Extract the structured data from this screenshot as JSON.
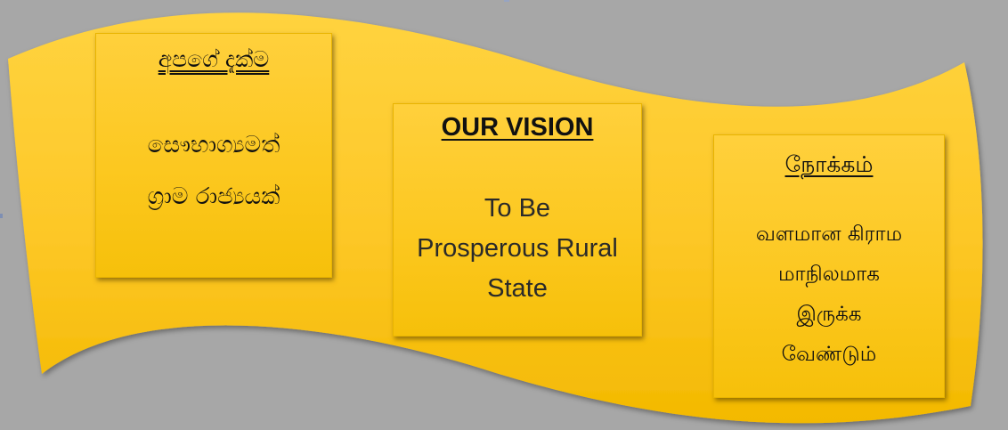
{
  "colors": {
    "background": "#a7a7a7",
    "banner": "#fdc726",
    "card": "#fcc820",
    "text": "#111111"
  },
  "cards": [
    {
      "title": "අපගේ දැක්ම",
      "body": "සෞභාග්‍යමත්\nග්‍රාම රාජ්‍යයක්"
    },
    {
      "title": "OUR VISION",
      "body": "To Be\nProsperous Rural\nState"
    },
    {
      "title": "நோக்கம்",
      "body": "வளமான கிராம\nமாநிலமாக\nஇருக்க\nவேண்டும்"
    }
  ]
}
